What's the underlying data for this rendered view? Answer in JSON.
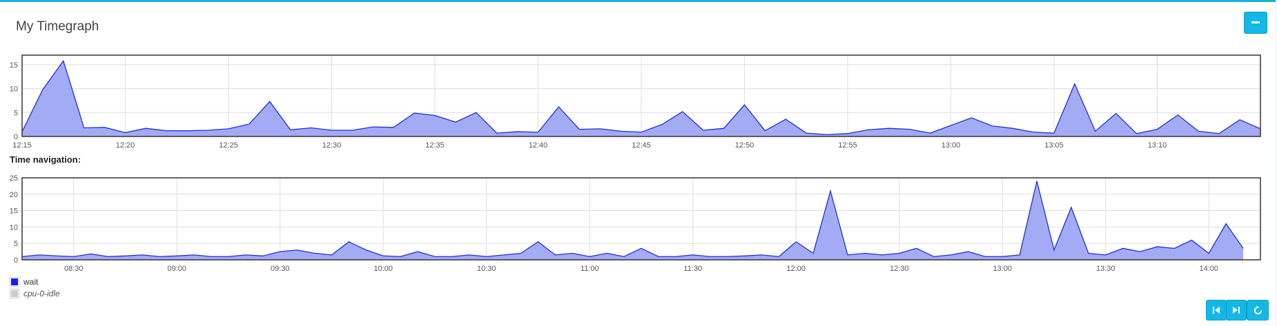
{
  "panel": {
    "title": "My Timegraph"
  },
  "navigation_label": "Time navigation:",
  "colors": {
    "accent": "#13b8e6",
    "series_fill": "#a3abf5",
    "series_line": "#1f2fd8"
  },
  "buttons": {
    "collapse": "minus-icon",
    "nav_first": "skip-back-icon",
    "nav_last": "skip-forward-icon",
    "reset": "refresh-icon"
  },
  "legend": [
    {
      "label": "wait",
      "color": "#1a1aff",
      "italic": false
    },
    {
      "label": "cpu-0-idle",
      "color": "#cccccc",
      "italic": true
    }
  ],
  "chart_data": [
    {
      "type": "area",
      "x_unit": "time",
      "xlim": [
        "12:15",
        "13:15"
      ],
      "ylim": [
        0,
        17
      ],
      "y_ticks": [
        0,
        5,
        10,
        15
      ],
      "x_tick_labels": [
        "12:15",
        "12:20",
        "12:25",
        "12:30",
        "12:35",
        "12:40",
        "12:45",
        "12:50",
        "12:55",
        "13:00",
        "13:05",
        "13:10"
      ],
      "grid": true,
      "series": [
        {
          "name": "wait",
          "x": [
            "12:15",
            "12:16",
            "12:17",
            "12:18",
            "12:19",
            "12:20",
            "12:21",
            "12:22",
            "12:23",
            "12:24",
            "12:25",
            "12:26",
            "12:27",
            "12:28",
            "12:29",
            "12:30",
            "12:31",
            "12:32",
            "12:33",
            "12:34",
            "12:35",
            "12:36",
            "12:37",
            "12:38",
            "12:39",
            "12:40",
            "12:41",
            "12:42",
            "12:43",
            "12:44",
            "12:45",
            "12:46",
            "12:47",
            "12:48",
            "12:49",
            "12:50",
            "12:51",
            "12:52",
            "12:53",
            "12:54",
            "12:55",
            "12:56",
            "12:57",
            "12:58",
            "12:59",
            "13:00",
            "13:01",
            "13:02",
            "13:03",
            "13:04",
            "13:05",
            "13:06",
            "13:07",
            "13:08",
            "13:09",
            "13:10",
            "13:11",
            "13:12",
            "13:13",
            "13:14",
            "13:15"
          ],
          "values": [
            1.0,
            9.8,
            15.8,
            1.8,
            1.9,
            0.8,
            1.7,
            1.2,
            1.2,
            1.3,
            1.6,
            2.6,
            7.3,
            1.4,
            1.8,
            1.3,
            1.3,
            2.0,
            1.9,
            4.9,
            4.4,
            3.0,
            5.0,
            0.7,
            1.0,
            0.9,
            6.2,
            1.5,
            1.6,
            1.1,
            0.9,
            2.5,
            5.2,
            1.3,
            1.7,
            6.6,
            1.2,
            3.6,
            0.7,
            0.4,
            0.6,
            1.4,
            1.7,
            1.5,
            0.7,
            2.3,
            3.9,
            2.2,
            1.7,
            0.9,
            0.7,
            11.0,
            1.1,
            4.8,
            0.6,
            1.5,
            4.5,
            1.1,
            0.6,
            3.5,
            1.6
          ]
        }
      ]
    },
    {
      "type": "area",
      "x_unit": "time",
      "xlim": [
        "08:15",
        "14:15"
      ],
      "ylim": [
        0,
        25
      ],
      "y_ticks": [
        0,
        5,
        10,
        15,
        20,
        25
      ],
      "x_tick_labels": [
        "08:30",
        "09:00",
        "09:30",
        "10:00",
        "10:30",
        "11:00",
        "11:30",
        "12:00",
        "12:30",
        "13:00",
        "13:30",
        "14:00"
      ],
      "grid": true,
      "series": [
        {
          "name": "wait",
          "x": [
            "08:15",
            "08:20",
            "08:25",
            "08:30",
            "08:35",
            "08:40",
            "08:45",
            "08:50",
            "08:55",
            "09:00",
            "09:05",
            "09:10",
            "09:15",
            "09:20",
            "09:25",
            "09:30",
            "09:35",
            "09:40",
            "09:45",
            "09:50",
            "09:55",
            "10:00",
            "10:05",
            "10:10",
            "10:15",
            "10:20",
            "10:25",
            "10:30",
            "10:35",
            "10:40",
            "10:45",
            "10:50",
            "10:55",
            "11:00",
            "11:05",
            "11:10",
            "11:15",
            "11:20",
            "11:25",
            "11:30",
            "11:35",
            "11:40",
            "11:45",
            "11:50",
            "11:55",
            "12:00",
            "12:05",
            "12:10",
            "12:15",
            "12:20",
            "12:25",
            "12:30",
            "12:35",
            "12:40",
            "12:45",
            "12:50",
            "12:55",
            "13:00",
            "13:05",
            "13:10",
            "13:15",
            "13:20",
            "13:25",
            "13:30",
            "13:35",
            "13:40",
            "13:45",
            "13:50",
            "13:55",
            "14:00",
            "14:05",
            "14:10"
          ],
          "values": [
            1.0,
            1.5,
            1.2,
            1.0,
            1.8,
            1.0,
            1.2,
            1.5,
            1.0,
            1.2,
            1.5,
            1.0,
            1.0,
            1.5,
            1.2,
            2.5,
            3.0,
            2.0,
            1.5,
            5.5,
            3.0,
            1.2,
            1.0,
            2.5,
            1.0,
            1.0,
            1.5,
            1.0,
            1.5,
            2.0,
            5.5,
            1.5,
            2.0,
            1.0,
            2.0,
            1.0,
            3.5,
            1.0,
            1.0,
            1.5,
            1.0,
            1.0,
            1.2,
            1.5,
            1.0,
            5.5,
            2.0,
            21.0,
            1.5,
            2.0,
            1.5,
            2.0,
            3.5,
            1.0,
            1.5,
            2.5,
            1.0,
            1.0,
            1.5,
            24.0,
            3.0,
            16.0,
            2.0,
            1.5,
            3.5,
            2.5,
            4.0,
            3.5,
            6.0,
            2.0,
            11.0,
            3.5
          ]
        }
      ]
    }
  ]
}
